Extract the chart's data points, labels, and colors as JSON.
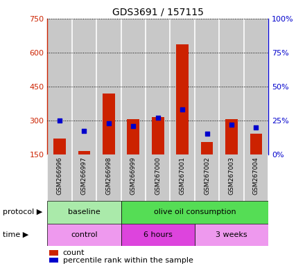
{
  "title": "GDS3691 / 157115",
  "samples": [
    "GSM266996",
    "GSM266997",
    "GSM266998",
    "GSM266999",
    "GSM267000",
    "GSM267001",
    "GSM267002",
    "GSM267003",
    "GSM267004"
  ],
  "counts": [
    220,
    165,
    420,
    305,
    315,
    635,
    205,
    305,
    240
  ],
  "percentile_ranks": [
    25,
    17,
    23,
    21,
    27,
    33,
    15,
    22,
    20
  ],
  "ylim_left": [
    150,
    750
  ],
  "ylim_right": [
    0,
    100
  ],
  "yticks_left": [
    150,
    300,
    450,
    600,
    750
  ],
  "yticks_right": [
    0,
    25,
    50,
    75,
    100
  ],
  "bar_color": "#cc2200",
  "dot_color": "#0000cc",
  "bg_color": "#c8c8c8",
  "col_sep_color": "#ffffff",
  "protocol_groups": [
    {
      "label": "baseline",
      "span": [
        0,
        3
      ],
      "color": "#aaeaaa"
    },
    {
      "label": "olive oil consumption",
      "span": [
        3,
        9
      ],
      "color": "#55dd55"
    }
  ],
  "time_groups": [
    {
      "label": "control",
      "span": [
        0,
        3
      ],
      "color": "#ee99ee"
    },
    {
      "label": "6 hours",
      "span": [
        3,
        6
      ],
      "color": "#dd44dd"
    },
    {
      "label": "3 weeks",
      "span": [
        6,
        9
      ],
      "color": "#ee99ee"
    }
  ],
  "protocol_label": "protocol",
  "time_label": "time",
  "legend_count_label": "count",
  "legend_pct_label": "percentile rank within the sample",
  "left_axis_color": "#cc2200",
  "right_axis_color": "#0000cc",
  "grid_linestyle": ":",
  "grid_color": "#000000",
  "grid_linewidth": 0.7
}
